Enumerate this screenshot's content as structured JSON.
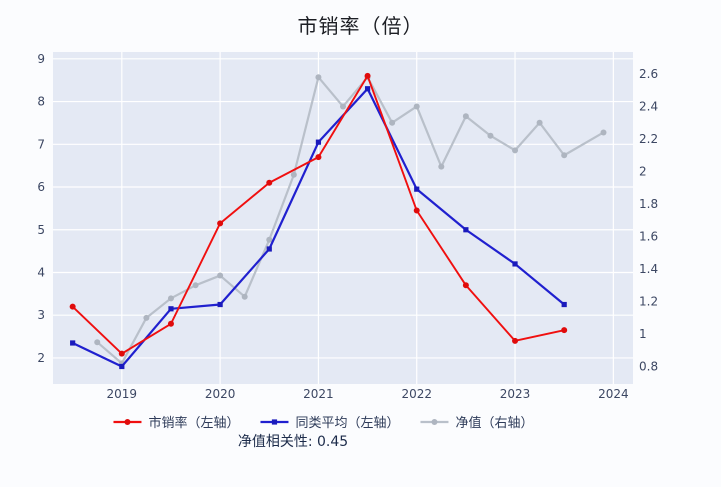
{
  "title": "市销率（倍）",
  "correlation_note": "净值相关性: 0.45",
  "chart_data": {
    "type": "line",
    "title": "市销率（倍）",
    "grid": true,
    "legend_position": "bottom",
    "plot_bg": "#e4e9f4",
    "grid_color": "#ffffff",
    "tick_color": "#3c4763",
    "x_axis": {
      "range": [
        2018.3,
        2024.2
      ],
      "tick_values": [
        2019,
        2020,
        2021,
        2022,
        2023,
        2024
      ],
      "tick_labels": [
        "2019",
        "2020",
        "2021",
        "2022",
        "2023",
        "2024"
      ]
    },
    "left_axis": {
      "range": [
        1.39,
        9.16
      ],
      "tick_values": [
        2,
        3,
        4,
        5,
        6,
        7,
        8,
        9
      ],
      "tick_labels": [
        "2",
        "3",
        "4",
        "5",
        "6",
        "7",
        "8",
        "9"
      ]
    },
    "right_axis": {
      "range": [
        0.693,
        2.735
      ],
      "tick_values": [
        0.8,
        1.0,
        1.2,
        1.4,
        1.6,
        1.8,
        2.0,
        2.2,
        2.4,
        2.6
      ],
      "tick_labels": [
        "0.8",
        "1",
        "1.2",
        "1.4",
        "1.6",
        "1.8",
        "2",
        "2.2",
        "2.4",
        "2.6"
      ]
    },
    "series": [
      {
        "name": "净值（右轴）",
        "axis": "right",
        "color": "#b9c0ca",
        "marker_color": "#aeb5c0",
        "marker": "circle",
        "line_width": 2.2,
        "x": [
          2018.75,
          2019.0,
          2019.25,
          2019.5,
          2019.75,
          2020.0,
          2020.25,
          2020.5,
          2020.75,
          2021.0,
          2021.25,
          2021.5,
          2021.75,
          2022.0,
          2022.25,
          2022.5,
          2022.75,
          2023.0,
          2023.25,
          2023.5,
          2023.9
        ],
        "values": [
          0.95,
          0.82,
          1.1,
          1.22,
          1.3,
          1.36,
          1.23,
          1.58,
          1.98,
          2.58,
          2.4,
          2.58,
          2.3,
          2.4,
          2.03,
          2.34,
          2.22,
          2.13,
          2.3,
          2.1,
          2.24
        ]
      },
      {
        "name": "同类平均（左轴）",
        "axis": "left",
        "color": "#2020cf",
        "marker_color": "#1a1abc",
        "marker": "square",
        "line_width": 2.2,
        "x": [
          2018.5,
          2019.0,
          2019.5,
          2020.0,
          2020.5,
          2021.0,
          2021.5,
          2022.0,
          2022.5,
          2023.0,
          2023.5
        ],
        "values": [
          2.35,
          1.8,
          3.15,
          3.25,
          4.55,
          7.05,
          8.3,
          5.95,
          5.0,
          4.2,
          3.25
        ]
      },
      {
        "name": "市销率（左轴）",
        "axis": "left",
        "color": "#f00f0f",
        "marker_color": "#e00b0b",
        "marker": "circle",
        "line_width": 1.9,
        "x": [
          2018.5,
          2019.0,
          2019.5,
          2020.0,
          2020.5,
          2021.0,
          2021.5,
          2022.0,
          2022.5,
          2023.0,
          2023.5
        ],
        "values": [
          3.2,
          2.1,
          2.8,
          5.15,
          6.1,
          6.7,
          8.6,
          5.45,
          3.7,
          2.4,
          2.65
        ]
      }
    ],
    "legend_order": [
      2,
      1,
      0
    ]
  }
}
